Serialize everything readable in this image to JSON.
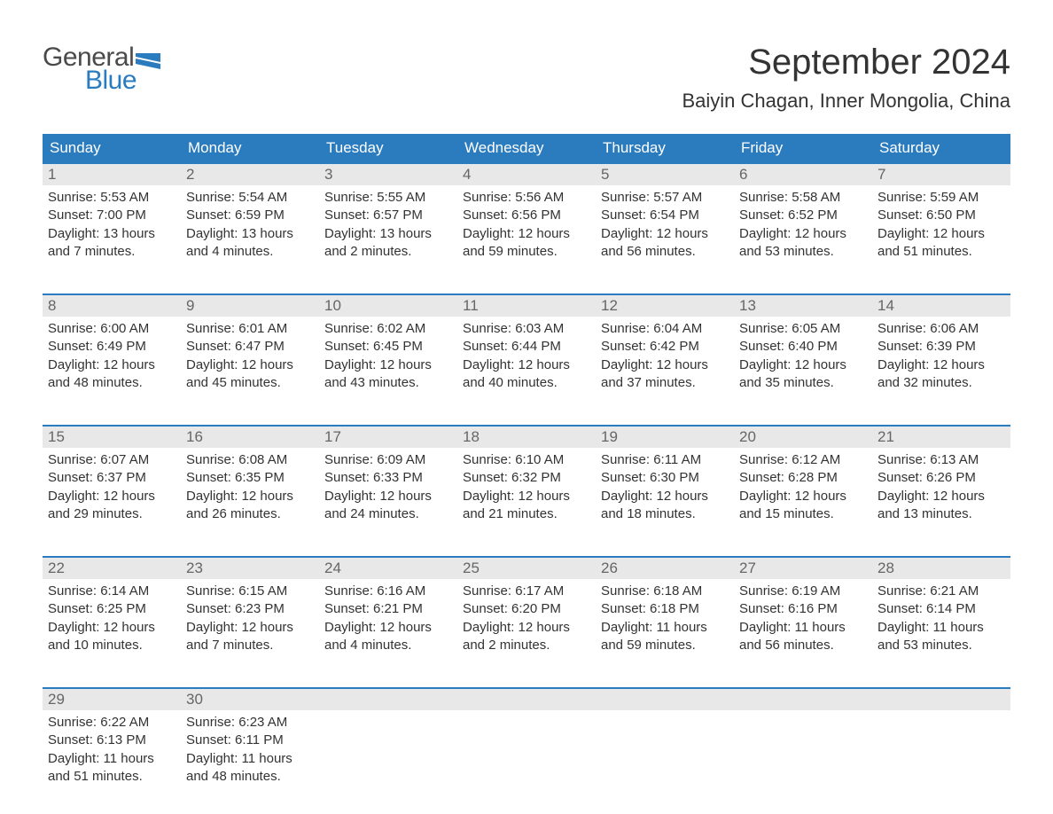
{
  "logo": {
    "text1": "General",
    "text2": "Blue",
    "flag_color": "#2b7bbf"
  },
  "title": "September 2024",
  "location": "Baiyin Chagan, Inner Mongolia, China",
  "colors": {
    "header_bg": "#2b7bbf",
    "header_text": "#ffffff",
    "row_border": "#2b7bbf",
    "daynum_bg": "#e8e8e8",
    "daynum_text": "#666666",
    "body_text": "#333333",
    "page_bg": "#ffffff"
  },
  "typography": {
    "title_fontsize": 40,
    "location_fontsize": 22,
    "dow_fontsize": 17,
    "daynum_fontsize": 17,
    "body_fontsize": 15
  },
  "layout": {
    "columns": 7,
    "rows": 5,
    "cell_min_height": 128
  },
  "days_of_week": [
    "Sunday",
    "Monday",
    "Tuesday",
    "Wednesday",
    "Thursday",
    "Friday",
    "Saturday"
  ],
  "weeks": [
    [
      {
        "day": 1,
        "sunrise": "5:53 AM",
        "sunset": "7:00 PM",
        "daylight": "13 hours and 7 minutes."
      },
      {
        "day": 2,
        "sunrise": "5:54 AM",
        "sunset": "6:59 PM",
        "daylight": "13 hours and 4 minutes."
      },
      {
        "day": 3,
        "sunrise": "5:55 AM",
        "sunset": "6:57 PM",
        "daylight": "13 hours and 2 minutes."
      },
      {
        "day": 4,
        "sunrise": "5:56 AM",
        "sunset": "6:56 PM",
        "daylight": "12 hours and 59 minutes."
      },
      {
        "day": 5,
        "sunrise": "5:57 AM",
        "sunset": "6:54 PM",
        "daylight": "12 hours and 56 minutes."
      },
      {
        "day": 6,
        "sunrise": "5:58 AM",
        "sunset": "6:52 PM",
        "daylight": "12 hours and 53 minutes."
      },
      {
        "day": 7,
        "sunrise": "5:59 AM",
        "sunset": "6:50 PM",
        "daylight": "12 hours and 51 minutes."
      }
    ],
    [
      {
        "day": 8,
        "sunrise": "6:00 AM",
        "sunset": "6:49 PM",
        "daylight": "12 hours and 48 minutes."
      },
      {
        "day": 9,
        "sunrise": "6:01 AM",
        "sunset": "6:47 PM",
        "daylight": "12 hours and 45 minutes."
      },
      {
        "day": 10,
        "sunrise": "6:02 AM",
        "sunset": "6:45 PM",
        "daylight": "12 hours and 43 minutes."
      },
      {
        "day": 11,
        "sunrise": "6:03 AM",
        "sunset": "6:44 PM",
        "daylight": "12 hours and 40 minutes."
      },
      {
        "day": 12,
        "sunrise": "6:04 AM",
        "sunset": "6:42 PM",
        "daylight": "12 hours and 37 minutes."
      },
      {
        "day": 13,
        "sunrise": "6:05 AM",
        "sunset": "6:40 PM",
        "daylight": "12 hours and 35 minutes."
      },
      {
        "day": 14,
        "sunrise": "6:06 AM",
        "sunset": "6:39 PM",
        "daylight": "12 hours and 32 minutes."
      }
    ],
    [
      {
        "day": 15,
        "sunrise": "6:07 AM",
        "sunset": "6:37 PM",
        "daylight": "12 hours and 29 minutes."
      },
      {
        "day": 16,
        "sunrise": "6:08 AM",
        "sunset": "6:35 PM",
        "daylight": "12 hours and 26 minutes."
      },
      {
        "day": 17,
        "sunrise": "6:09 AM",
        "sunset": "6:33 PM",
        "daylight": "12 hours and 24 minutes."
      },
      {
        "day": 18,
        "sunrise": "6:10 AM",
        "sunset": "6:32 PM",
        "daylight": "12 hours and 21 minutes."
      },
      {
        "day": 19,
        "sunrise": "6:11 AM",
        "sunset": "6:30 PM",
        "daylight": "12 hours and 18 minutes."
      },
      {
        "day": 20,
        "sunrise": "6:12 AM",
        "sunset": "6:28 PM",
        "daylight": "12 hours and 15 minutes."
      },
      {
        "day": 21,
        "sunrise": "6:13 AM",
        "sunset": "6:26 PM",
        "daylight": "12 hours and 13 minutes."
      }
    ],
    [
      {
        "day": 22,
        "sunrise": "6:14 AM",
        "sunset": "6:25 PM",
        "daylight": "12 hours and 10 minutes."
      },
      {
        "day": 23,
        "sunrise": "6:15 AM",
        "sunset": "6:23 PM",
        "daylight": "12 hours and 7 minutes."
      },
      {
        "day": 24,
        "sunrise": "6:16 AM",
        "sunset": "6:21 PM",
        "daylight": "12 hours and 4 minutes."
      },
      {
        "day": 25,
        "sunrise": "6:17 AM",
        "sunset": "6:20 PM",
        "daylight": "12 hours and 2 minutes."
      },
      {
        "day": 26,
        "sunrise": "6:18 AM",
        "sunset": "6:18 PM",
        "daylight": "11 hours and 59 minutes."
      },
      {
        "day": 27,
        "sunrise": "6:19 AM",
        "sunset": "6:16 PM",
        "daylight": "11 hours and 56 minutes."
      },
      {
        "day": 28,
        "sunrise": "6:21 AM",
        "sunset": "6:14 PM",
        "daylight": "11 hours and 53 minutes."
      }
    ],
    [
      {
        "day": 29,
        "sunrise": "6:22 AM",
        "sunset": "6:13 PM",
        "daylight": "11 hours and 51 minutes."
      },
      {
        "day": 30,
        "sunrise": "6:23 AM",
        "sunset": "6:11 PM",
        "daylight": "11 hours and 48 minutes."
      },
      null,
      null,
      null,
      null,
      null
    ]
  ],
  "labels": {
    "sunrise": "Sunrise:",
    "sunset": "Sunset:",
    "daylight": "Daylight:"
  }
}
